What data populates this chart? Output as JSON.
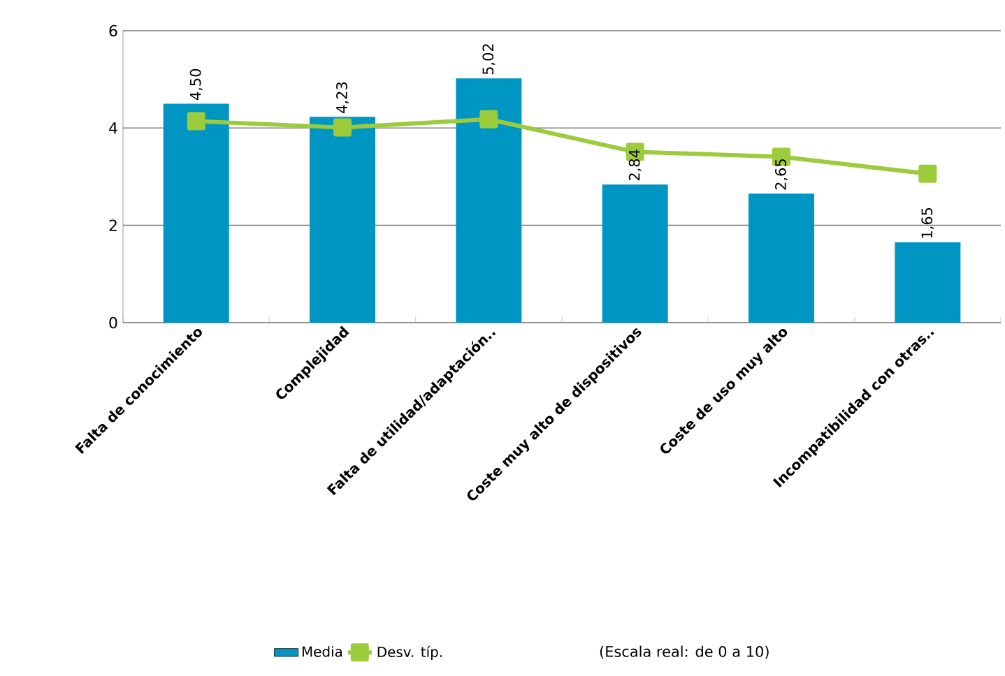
{
  "chart_data": {
    "type": "bar",
    "categories": [
      "Falta de conocimiento",
      "Complejidad",
      "Falta de utilidad/adaptación..",
      "Coste muy alto de dispositivos",
      "Coste de uso muy alto",
      "Incompatibilidad con otras.."
    ],
    "series": [
      {
        "name": "Media",
        "color": "#0096c4",
        "values": [
          4.5,
          4.23,
          5.02,
          2.84,
          2.65,
          1.65
        ],
        "value_labels": [
          "4,50",
          "4,23",
          "5,02",
          "2,84",
          "2,65",
          "1,65"
        ]
      },
      {
        "name": "Desv. típ.",
        "type": "line",
        "color": "#9ccb3b",
        "marker": "square",
        "values": [
          4.14,
          4.01,
          4.18,
          3.51,
          3.41,
          3.06
        ]
      }
    ],
    "ylim": [
      0,
      6
    ],
    "yticks": [
      0,
      2,
      4,
      6
    ],
    "grid": "y",
    "legend": "bottom",
    "annotations": [
      "(Escala real: de 0 a 10)"
    ]
  }
}
